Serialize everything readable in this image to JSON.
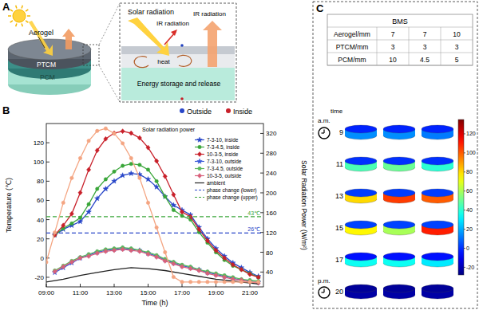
{
  "panel_labels": [
    "A",
    "B",
    "C"
  ],
  "panel_a": {
    "aerogel": "Aerogel",
    "ptcm": "PTCM",
    "pcm": "PCM",
    "inset": {
      "solar": "Solar radiation",
      "ir_left": "IR radiation",
      "ir_right": "IR radiation",
      "heat": "heat",
      "storage": "Energy storage and release"
    }
  },
  "chart_data": {
    "type": "line",
    "x_label": "Time (h)",
    "y_label": "Temperature (℃)",
    "y2_label": "Solar Radiation Power (W/m²)",
    "xlim": [
      9,
      21.8
    ],
    "xticks": [
      {
        "value": 9,
        "label": "09:00"
      },
      {
        "value": 11,
        "label": "11:00"
      },
      {
        "value": 13,
        "label": "13:00"
      },
      {
        "value": 15,
        "label": "15:00"
      },
      {
        "value": 17,
        "label": "17:00"
      },
      {
        "value": 19,
        "label": "19:00"
      },
      {
        "value": 21,
        "label": "21:00"
      }
    ],
    "ylim": [
      -30,
      140
    ],
    "yticks": [
      -20,
      0,
      20,
      40,
      60,
      80,
      100,
      120
    ],
    "y2lim": [
      10,
      340
    ],
    "y2ticks": [
      40,
      80,
      120,
      160,
      200,
      240,
      280,
      320
    ],
    "legend": "upper right",
    "marker_key": [
      {
        "name": "Outside",
        "color": "#2846c8"
      },
      {
        "name": "Inside",
        "color": "#c8202a"
      }
    ],
    "annotations": [
      {
        "text": "Solar radiation power",
        "color": "#000000"
      },
      {
        "text": "43℃",
        "y": 43,
        "color": "#3aa63a"
      },
      {
        "text": "26℃",
        "y": 26,
        "color": "#2846c8"
      }
    ],
    "series": [
      {
        "name": "7-3-10, inside",
        "color": "#2846c8",
        "marker": "star",
        "line_style": "solid",
        "x": [
          9.5,
          10,
          10.5,
          11,
          11.5,
          12,
          12.5,
          13,
          13.5,
          14,
          14.5,
          15,
          15.5,
          16,
          16.5,
          17,
          17.5,
          18,
          18.5,
          19,
          19.5,
          20,
          20.5,
          21,
          21.5
        ],
        "values": [
          24,
          30,
          34,
          38,
          48,
          62,
          72,
          80,
          86,
          88,
          87,
          82,
          74,
          64,
          55,
          50,
          45,
          32,
          20,
          10,
          2,
          -5,
          -10,
          -15,
          -19
        ]
      },
      {
        "name": "7-3-4.5, inside",
        "color": "#3aa63a",
        "marker": "circle",
        "line_style": "solid",
        "x": [
          9.5,
          10,
          10.5,
          11,
          11.5,
          12,
          12.5,
          13,
          13.5,
          14,
          14.5,
          15,
          15.5,
          16,
          16.5,
          17,
          17.5,
          18,
          18.5,
          19,
          19.5,
          20,
          20.5,
          21,
          21.5
        ],
        "values": [
          24,
          31,
          36,
          42,
          56,
          72,
          82,
          90,
          96,
          98,
          97,
          92,
          80,
          64,
          50,
          44,
          40,
          27,
          16,
          6,
          -2,
          -8,
          -12,
          -16,
          -20
        ]
      },
      {
        "name": "10-3-5, inside",
        "color": "#c8202a",
        "marker": "diamond",
        "line_style": "solid",
        "x": [
          9.5,
          10,
          10.5,
          11,
          11.5,
          12,
          12.5,
          13,
          13.5,
          14,
          14.5,
          15,
          15.5,
          16,
          16.5,
          17,
          17.5,
          18,
          18.5,
          19,
          19.5,
          20,
          20.5,
          21,
          21.5
        ],
        "values": [
          24,
          34,
          46,
          68,
          92,
          112,
          124,
          130,
          132,
          130,
          125,
          115,
          101,
          85,
          66,
          48,
          43,
          30,
          18,
          8,
          0,
          -7,
          -12,
          -17,
          -20
        ]
      },
      {
        "name": "7-3-10, outside",
        "color": "#3a5ad8",
        "marker": "star",
        "line_style": "solid",
        "x": [
          9.5,
          10,
          10.5,
          11,
          11.5,
          12,
          12.5,
          13,
          13.5,
          14,
          14.5,
          15,
          15.5,
          16,
          16.5,
          17,
          17.5,
          18,
          18.5,
          19,
          19.5,
          20,
          20.5,
          21,
          21.5
        ],
        "values": [
          -15,
          -10,
          -5,
          0,
          3,
          6,
          8,
          9,
          10,
          9,
          8,
          5,
          2,
          -2,
          -5,
          -8,
          -10,
          -12,
          -15,
          -17,
          -19,
          -21,
          -23,
          -24,
          -25
        ]
      },
      {
        "name": "7-3-4.5, outside",
        "color": "#5cb85c",
        "marker": "circle",
        "line_style": "solid",
        "x": [
          9.5,
          10,
          10.5,
          11,
          11.5,
          12,
          12.5,
          13,
          13.5,
          14,
          14.5,
          15,
          15.5,
          16,
          16.5,
          17,
          17.5,
          18,
          18.5,
          19,
          19.5,
          20,
          20.5,
          21,
          21.5
        ],
        "values": [
          -13,
          -8,
          -3,
          1,
          4,
          7,
          9,
          10,
          11,
          10,
          8,
          6,
          3,
          -1,
          -4,
          -7,
          -9,
          -12,
          -14,
          -16,
          -18,
          -20,
          -22,
          -23,
          -24
        ]
      },
      {
        "name": "10-3-5, outside",
        "color": "#d8607a",
        "marker": "diamond",
        "line_style": "solid",
        "x": [
          9.5,
          10,
          10.5,
          11,
          11.5,
          12,
          12.5,
          13,
          13.5,
          14,
          14.5,
          15,
          15.5,
          16,
          16.5,
          17,
          17.5,
          18,
          18.5,
          19,
          19.5,
          20,
          20.5,
          21,
          21.5
        ],
        "values": [
          -14,
          -9,
          -4,
          0,
          2,
          5,
          7,
          8,
          9,
          8,
          7,
          4,
          1,
          -3,
          -6,
          -9,
          -11,
          -13,
          -16,
          -18,
          -20,
          -22,
          -23,
          -25,
          -26
        ]
      },
      {
        "name": "ambient",
        "color": "#222222",
        "marker": "none",
        "line_style": "solid",
        "x": [
          9,
          10,
          11,
          12,
          13,
          14,
          15,
          16,
          17,
          18,
          19,
          20,
          21,
          21.5
        ],
        "values": [
          -25,
          -22,
          -18,
          -15,
          -12,
          -10,
          -11,
          -13,
          -16,
          -19,
          -22,
          -24,
          -26,
          -27
        ]
      },
      {
        "name": "phase change (lower)",
        "color": "#2846c8",
        "marker": "none",
        "line_style": "dashed",
        "x": [
          9,
          21.8
        ],
        "values": [
          26,
          26
        ]
      },
      {
        "name": "phase change (upper)",
        "color": "#3aa63a",
        "marker": "none",
        "line_style": "dashed",
        "x": [
          9,
          21.8
        ],
        "values": [
          43,
          43
        ]
      },
      {
        "axis": "y2",
        "color": "#f4a582",
        "marker": "circle",
        "line_style": "solid",
        "x": [
          9,
          9.5,
          10,
          10.5,
          11,
          11.5,
          12,
          12.5,
          13,
          13.5,
          14,
          14.5,
          15,
          15.5,
          16,
          16.5,
          17,
          17.5,
          18,
          18.5,
          19,
          19.5,
          20,
          20.5,
          21,
          21.5
        ],
        "values": [
          60,
          120,
          180,
          230,
          270,
          305,
          325,
          330,
          320,
          300,
          270,
          230,
          180,
          130,
          80,
          30,
          20,
          20,
          20,
          20,
          20,
          20,
          20,
          20,
          20,
          20
        ]
      }
    ]
  },
  "panel_c": {
    "table": {
      "header": "BMS",
      "rows": [
        [
          "Aerogel/mm",
          7,
          7,
          10
        ],
        [
          "PTCM/mm",
          3,
          3,
          3
        ],
        [
          "PCM/mm",
          10,
          4.5,
          5
        ]
      ]
    },
    "time_label": "time",
    "am": "a.m.",
    "pm": "p.m.",
    "times": [
      9,
      11,
      13,
      15,
      17,
      20
    ],
    "top_temperatures": [
      [
        -2,
        -2,
        -2
      ],
      [
        0,
        0,
        0
      ],
      [
        2,
        2,
        2
      ],
      [
        3,
        3,
        3
      ],
      [
        -5,
        -5,
        -5
      ],
      [
        -24,
        -24,
        -24
      ]
    ],
    "side_temperatures": [
      [
        15,
        15,
        12
      ],
      [
        45,
        50,
        40
      ],
      [
        80,
        105,
        100
      ],
      [
        75,
        60,
        110
      ],
      [
        35,
        35,
        30
      ],
      [
        -22,
        -22,
        -22
      ]
    ],
    "colorbar": {
      "range": [
        -28,
        135
      ],
      "ticks": [
        -20,
        0,
        20,
        40,
        60,
        80,
        100,
        120
      ]
    }
  }
}
